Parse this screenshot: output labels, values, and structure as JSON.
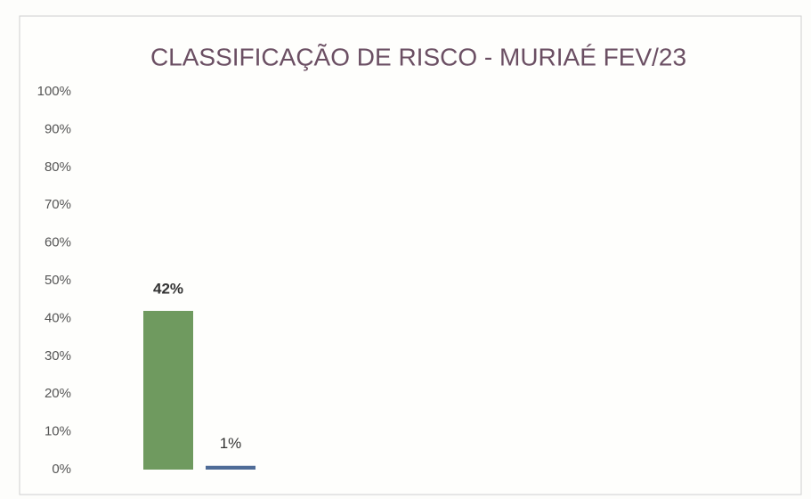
{
  "chart_data": {
    "type": "bar",
    "title": "CLASSIFICAÇÃO DE RISCO - MURIAÉ  FEV/23",
    "categories": [
      null,
      null
    ],
    "series": [
      {
        "colors": [
          "#6f9a5f",
          "#4f6c97"
        ]
      }
    ],
    "values": [
      42,
      1
    ],
    "value_labels": [
      "42%",
      "1%"
    ],
    "ylim": [
      0,
      100
    ],
    "yticks": [
      {
        "value": 0,
        "label": "0%"
      },
      {
        "value": 10,
        "label": "10%"
      },
      {
        "value": 20,
        "label": "20%"
      },
      {
        "value": 30,
        "label": "30%"
      },
      {
        "value": 40,
        "label": "40%"
      },
      {
        "value": 50,
        "label": "50%"
      },
      {
        "value": 60,
        "label": "60%"
      },
      {
        "value": 70,
        "label": "70%"
      },
      {
        "value": 80,
        "label": "80%"
      },
      {
        "value": 90,
        "label": "90%"
      },
      {
        "value": 100,
        "label": "100%"
      }
    ],
    "grid": false
  }
}
